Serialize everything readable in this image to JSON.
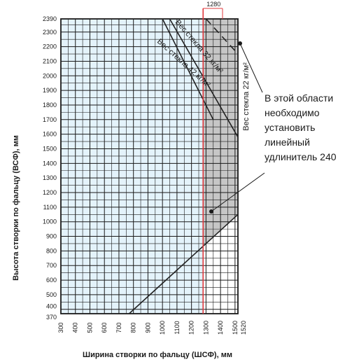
{
  "chart_data": {
    "type": "line",
    "xlabel": "Ширина створки по фальцу (ШСФ), мм",
    "ylabel": "Высота створки по фальцу (ВСФ), мм",
    "xlim": [
      300,
      1520
    ],
    "ylim": [
      370,
      2390
    ],
    "x_ticks": [
      "300",
      "400",
      "500",
      "600",
      "700",
      "800",
      "900",
      "1000",
      "1100",
      "1200",
      "1300",
      "1400",
      "1500",
      "1520"
    ],
    "y_ticks": [
      "370",
      "400",
      "500",
      "600",
      "700",
      "800",
      "900",
      "1000",
      "1100",
      "1200",
      "1300",
      "1400",
      "1500",
      "1600",
      "1700",
      "1800",
      "1900",
      "2000",
      "2100",
      "2200",
      "2300",
      "2390"
    ],
    "grid": true,
    "colors": {
      "light_region": "#e4f3fb",
      "shaded_region": "#c6c6c6",
      "marker_line": "#e0393e",
      "lines": "#222222"
    },
    "marker": {
      "x": 1280,
      "label": "1280"
    },
    "series": [
      {
        "name": "Вес стекла 22 кг/м²",
        "x": [
          1300,
          1520
        ],
        "y": [
          2390,
          2150
        ],
        "style": "dashed"
      },
      {
        "name": "Вес стекла 32 кг/м²",
        "x": [
          1050,
          1520
        ],
        "y": [
          2390,
          1580
        ],
        "style": "solid"
      },
      {
        "name": "Вес стекла 42 кг/м²",
        "x": [
          1000,
          1350
        ],
        "y": [
          2390,
          1700
        ],
        "style": "solid"
      },
      {
        "name": "",
        "x": [
          770,
          1520
        ],
        "y": [
          370,
          1050
        ],
        "style": "solid"
      }
    ],
    "annotation": {
      "text_lines": [
        "В этой области",
        "необходимо",
        "установить",
        "линейный",
        "удлинитель 240"
      ]
    }
  }
}
